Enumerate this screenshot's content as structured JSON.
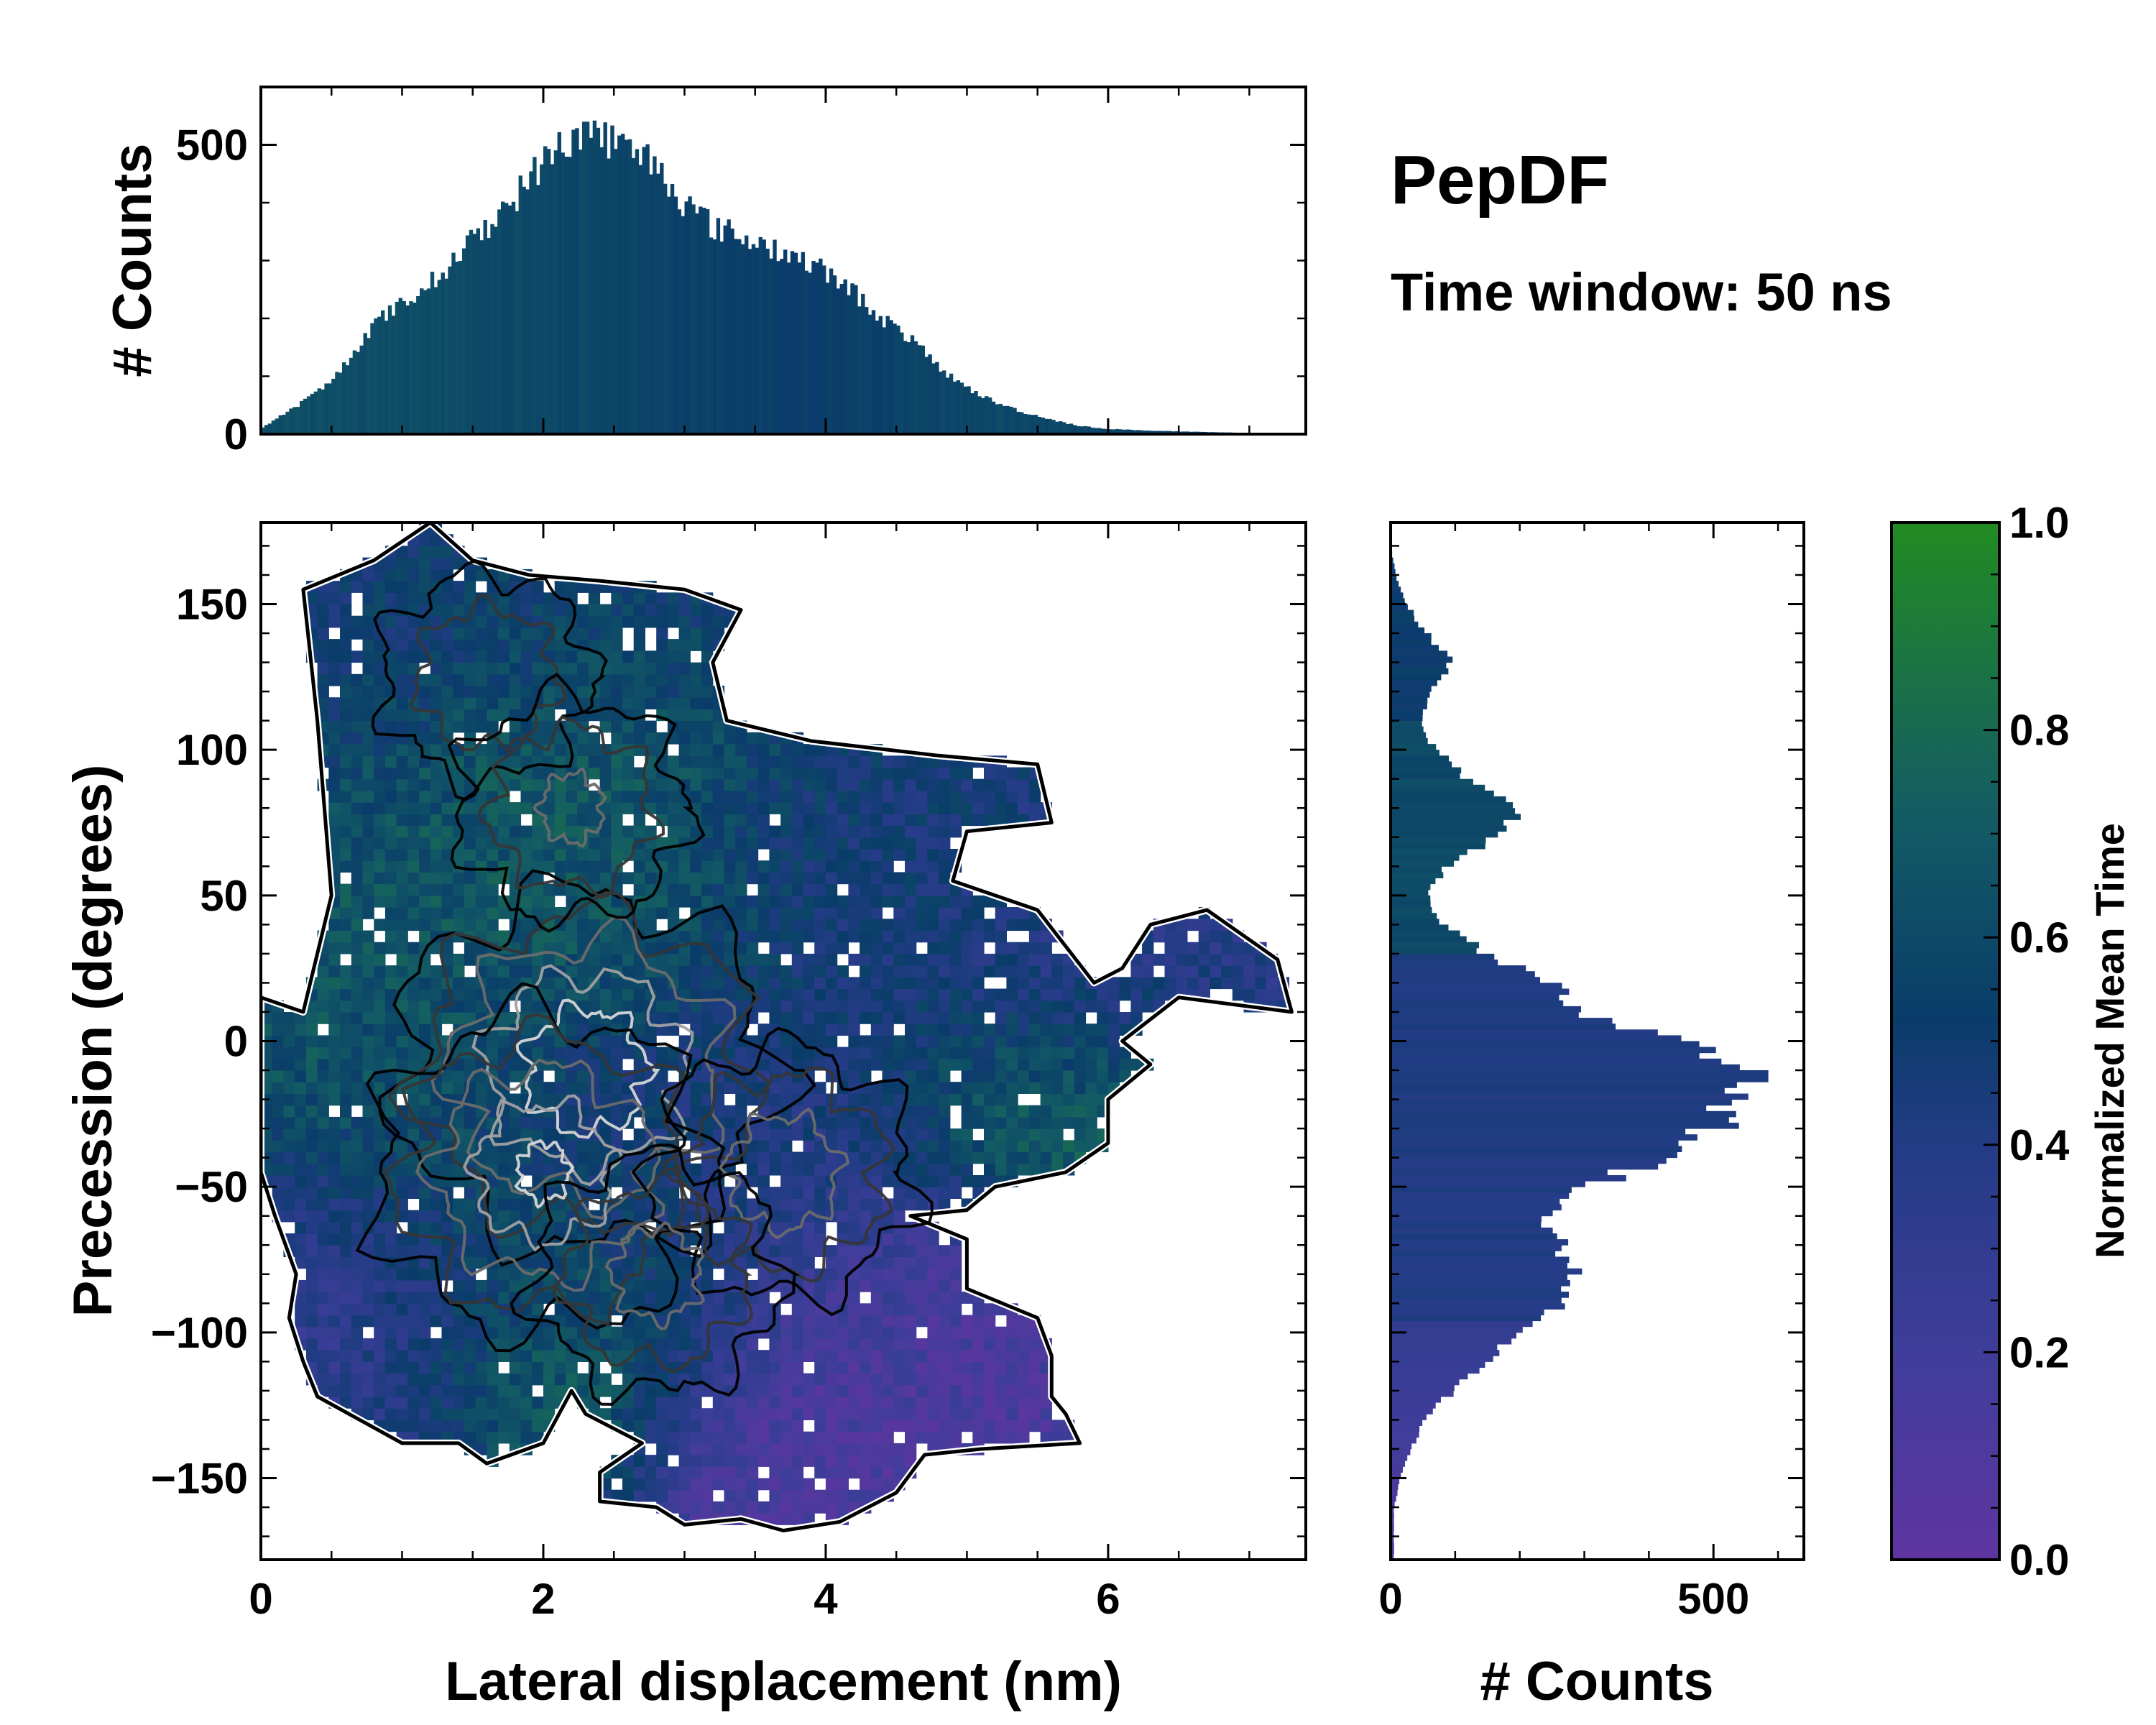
{
  "figure": {
    "annotation_title": "PepDF",
    "annotation_subtitle": "Time window: 50 ns"
  },
  "colors": {
    "cmap_low": "#5e35a0",
    "cmap_q1": "#3f3d9a",
    "cmap_q2": "#233c85",
    "cmap_mid": "#0a3c6a",
    "cmap_q3": "#135c64",
    "cmap_high": "#228b22",
    "hist_fill": "#1a3f6e",
    "contour_outer": "#000000",
    "contour_inner": "#d6d6d6"
  },
  "chart_data": [
    {
      "id": "main_heatmap",
      "type": "heatmap",
      "xlabel": "Lateral displacement (nm)",
      "ylabel": "Precession (degrees)",
      "xlim": [
        0,
        7.4
      ],
      "ylim": [
        -178,
        178
      ],
      "xticks": [
        0,
        2,
        4,
        6
      ],
      "xtick_labels": [
        "0",
        "2",
        "4",
        "6"
      ],
      "yticks": [
        -150,
        -100,
        -50,
        0,
        50,
        100,
        150
      ],
      "ytick_labels": [
        "−150",
        "−100",
        "−50",
        "0",
        "50",
        "100",
        "150"
      ],
      "bin_width_nm": 0.08,
      "bin_height_deg": 4,
      "occupied_region_outline": [
        [
          0.0,
          15
        ],
        [
          0.3,
          10
        ],
        [
          0.5,
          50
        ],
        [
          0.4,
          110
        ],
        [
          0.3,
          155
        ],
        [
          0.8,
          165
        ],
        [
          1.2,
          178
        ],
        [
          1.5,
          165
        ],
        [
          1.9,
          160
        ],
        [
          2.4,
          158
        ],
        [
          3.0,
          155
        ],
        [
          3.4,
          148
        ],
        [
          3.2,
          130
        ],
        [
          3.3,
          110
        ],
        [
          3.9,
          103
        ],
        [
          4.8,
          98
        ],
        [
          5.5,
          95
        ],
        [
          5.6,
          75
        ],
        [
          5.0,
          72
        ],
        [
          4.9,
          55
        ],
        [
          5.5,
          45
        ],
        [
          5.9,
          20
        ],
        [
          6.1,
          25
        ],
        [
          6.3,
          40
        ],
        [
          6.7,
          45
        ],
        [
          7.2,
          28
        ],
        [
          7.3,
          10
        ],
        [
          6.5,
          15
        ],
        [
          6.1,
          0
        ],
        [
          6.3,
          -8
        ],
        [
          6.0,
          -20
        ],
        [
          6.0,
          -35
        ],
        [
          5.7,
          -45
        ],
        [
          5.2,
          -50
        ],
        [
          5.0,
          -58
        ],
        [
          4.6,
          -60
        ],
        [
          5.0,
          -68
        ],
        [
          5.0,
          -85
        ],
        [
          5.5,
          -95
        ],
        [
          5.6,
          -108
        ],
        [
          5.6,
          -122
        ],
        [
          5.7,
          -128
        ],
        [
          5.8,
          -138
        ],
        [
          5.1,
          -140
        ],
        [
          4.7,
          -142
        ],
        [
          4.5,
          -155
        ],
        [
          4.1,
          -165
        ],
        [
          3.7,
          -168
        ],
        [
          3.4,
          -164
        ],
        [
          3.0,
          -166
        ],
        [
          2.8,
          -160
        ],
        [
          2.4,
          -158
        ],
        [
          2.4,
          -148
        ],
        [
          2.7,
          -138
        ],
        [
          2.3,
          -128
        ],
        [
          2.2,
          -120
        ],
        [
          2.0,
          -138
        ],
        [
          1.6,
          -145
        ],
        [
          1.4,
          -138
        ],
        [
          1.0,
          -138
        ],
        [
          0.7,
          -130
        ],
        [
          0.4,
          -122
        ],
        [
          0.3,
          -110
        ],
        [
          0.2,
          -95
        ],
        [
          0.25,
          -80
        ],
        [
          0.1,
          -60
        ],
        [
          0.0,
          -45
        ],
        [
          0.0,
          -20
        ],
        [
          0.0,
          0
        ]
      ],
      "mean_time_field": [
        {
          "x": 0.8,
          "y": 140,
          "value": 0.5,
          "spread": 1.0
        },
        {
          "x": 2.5,
          "y": 140,
          "value": 0.52,
          "spread": 1.0
        },
        {
          "x": 2.2,
          "y": 100,
          "value": 0.72,
          "spread": 0.8
        },
        {
          "x": 1.6,
          "y": 75,
          "value": 0.66,
          "spread": 0.8
        },
        {
          "x": 2.3,
          "y": 35,
          "value": 0.7,
          "spread": 0.9
        },
        {
          "x": 0.8,
          "y": 10,
          "value": 0.66,
          "spread": 0.9
        },
        {
          "x": 4.3,
          "y": 55,
          "value": 0.48,
          "spread": 1.0
        },
        {
          "x": 5.8,
          "y": 20,
          "value": 0.34,
          "spread": 0.9
        },
        {
          "x": 5.6,
          "y": -20,
          "value": 0.8,
          "spread": 0.8
        },
        {
          "x": 1.3,
          "y": -45,
          "value": 0.64,
          "spread": 0.9
        },
        {
          "x": 2.5,
          "y": -20,
          "value": 0.46,
          "spread": 1.0
        },
        {
          "x": 3.5,
          "y": -40,
          "value": 0.4,
          "spread": 1.0
        },
        {
          "x": 2.3,
          "y": -85,
          "value": 0.62,
          "spread": 0.9
        },
        {
          "x": 0.6,
          "y": -80,
          "value": 0.28,
          "spread": 0.8
        },
        {
          "x": 1.0,
          "y": -130,
          "value": 0.3,
          "spread": 0.8
        },
        {
          "x": 4.5,
          "y": -100,
          "value": 0.14,
          "spread": 1.0
        },
        {
          "x": 4.0,
          "y": -145,
          "value": 0.12,
          "spread": 1.0
        },
        {
          "x": 1.9,
          "y": -125,
          "value": 0.84,
          "spread": 0.7
        }
      ],
      "density_peaks": [
        {
          "x": 2.3,
          "y": -10,
          "weight": 1.0
        },
        {
          "x": 2.0,
          "y": -45,
          "weight": 0.8
        },
        {
          "x": 3.7,
          "y": -45,
          "weight": 0.5
        },
        {
          "x": 1.6,
          "y": 125,
          "weight": 0.35
        },
        {
          "x": 2.2,
          "y": 80,
          "weight": 0.4
        },
        {
          "x": 2.8,
          "y": -80,
          "weight": 0.45
        }
      ],
      "contour_levels": [
        0.08,
        0.2,
        0.38,
        0.58,
        0.8
      ]
    },
    {
      "id": "top_histogram",
      "type": "bar",
      "orientation": "vertical",
      "ylabel": "# Counts",
      "xlim": [
        0,
        7.4
      ],
      "ylim": [
        0,
        600
      ],
      "yticks": [
        0,
        500
      ],
      "ytick_labels": [
        "0",
        "500"
      ],
      "bin_width_nm": 0.025,
      "profile_x": [
        0.0,
        0.2,
        0.5,
        0.8,
        1.0,
        1.2,
        1.4,
        1.6,
        1.8,
        2.0,
        2.2,
        2.4,
        2.6,
        2.8,
        3.0,
        3.2,
        3.4,
        3.6,
        3.8,
        4.0,
        4.2,
        4.4,
        4.6,
        4.8,
        5.0,
        5.2,
        5.4,
        5.6,
        5.8,
        6.0,
        6.3,
        6.6,
        7.0,
        7.4
      ],
      "profile_counts": [
        10,
        40,
        90,
        190,
        225,
        260,
        310,
        360,
        410,
        470,
        515,
        520,
        490,
        470,
        400,
        360,
        340,
        325,
        305,
        280,
        245,
        200,
        165,
        115,
        80,
        55,
        38,
        25,
        14,
        9,
        6,
        4,
        2,
        0
      ],
      "peak_count": 540
    },
    {
      "id": "right_histogram",
      "type": "bar",
      "orientation": "horizontal",
      "xlabel": "# Counts",
      "xlim": [
        0,
        640
      ],
      "ylim": [
        -178,
        178
      ],
      "xticks": [
        0,
        500
      ],
      "xtick_labels": [
        "0",
        "500"
      ],
      "bin_height_deg": 2,
      "profile_y": [
        -160,
        -150,
        -140,
        -130,
        -120,
        -110,
        -100,
        -90,
        -80,
        -70,
        -60,
        -50,
        -40,
        -30,
        -20,
        -10,
        0,
        10,
        20,
        30,
        40,
        50,
        60,
        70,
        80,
        90,
        100,
        110,
        120,
        130,
        140,
        150,
        160,
        170
      ],
      "profile_counts": [
        5,
        15,
        30,
        55,
        95,
        145,
        200,
        260,
        290,
        265,
        240,
        300,
        430,
        500,
        530,
        525,
        455,
        300,
        240,
        150,
        80,
        55,
        85,
        160,
        200,
        120,
        70,
        45,
        60,
        95,
        55,
        25,
        8,
        0
      ],
      "peak_count": 585
    },
    {
      "id": "colorbar",
      "type": "colorbar",
      "label": "Normalized Mean Time",
      "lim": [
        0.0,
        1.0
      ],
      "ticks": [
        0.0,
        0.2,
        0.4,
        0.6,
        0.8,
        1.0
      ],
      "tick_labels": [
        "0.0",
        "0.2",
        "0.4",
        "0.6",
        "0.8",
        "1.0"
      ]
    }
  ]
}
